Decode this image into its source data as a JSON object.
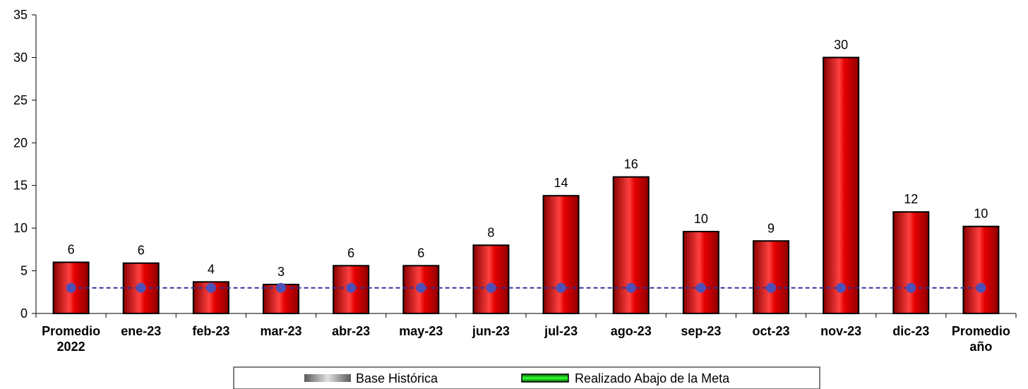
{
  "chart_data": {
    "type": "bar",
    "categories": [
      [
        "Promedio",
        "2022"
      ],
      [
        "ene-23"
      ],
      [
        "feb-23"
      ],
      [
        "mar-23"
      ],
      [
        "abr-23"
      ],
      [
        "may-23"
      ],
      [
        "jun-23"
      ],
      [
        "jul-23"
      ],
      [
        "ago-23"
      ],
      [
        "sep-23"
      ],
      [
        "oct-23"
      ],
      [
        "nov-23"
      ],
      [
        "dic-23"
      ],
      [
        "Promedio",
        "año"
      ]
    ],
    "values": [
      6.0,
      5.9,
      3.7,
      3.4,
      5.6,
      5.6,
      8.0,
      13.8,
      16.0,
      9.6,
      8.5,
      30.0,
      11.9,
      10.2
    ],
    "data_labels": [
      "6",
      "6",
      "4",
      "3",
      "6",
      "6",
      "8",
      "14",
      "16",
      "10",
      "9",
      "30",
      "12",
      "10"
    ],
    "target": {
      "values": [
        3,
        3,
        3,
        3,
        3,
        3,
        3,
        3,
        3,
        3,
        3,
        3,
        3,
        3
      ],
      "color": "#333399",
      "marker_color": "#4d50b8",
      "line_style": "dashed"
    },
    "ylim": [
      0,
      35
    ],
    "yticks": [
      "0",
      "5",
      "10",
      "15",
      "20",
      "25",
      "30",
      "35"
    ],
    "ytick_values": [
      0,
      5,
      10,
      15,
      20,
      25,
      30,
      35
    ],
    "grid": false,
    "bar_color": "#e60000",
    "bar_highlight": "#ff5a5a",
    "bar_shadow": "#8c0000",
    "legend": {
      "placement": "bottom-center",
      "items": [
        {
          "label": "Base Histórica",
          "swatch": "gray-gradient"
        },
        {
          "label": "Realizado Abajo de la Meta",
          "swatch": "green-gradient"
        }
      ]
    }
  }
}
